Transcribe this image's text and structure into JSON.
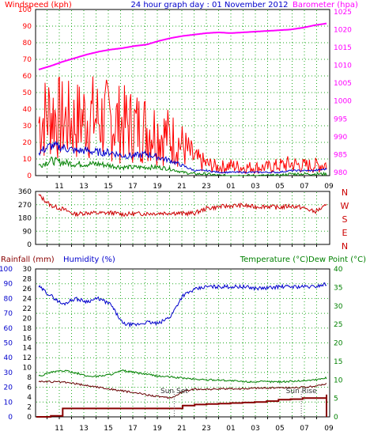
{
  "header": {
    "title": "24 hour graph day : 01 November 2012",
    "left_label": "Windspeed (kph)",
    "right_label": "Barometer (hpa)"
  },
  "hours": [
    "11",
    "13",
    "15",
    "17",
    "19",
    "21",
    "23",
    "01",
    "03",
    "05",
    "07",
    "09"
  ],
  "colors": {
    "wind": "#ff0000",
    "gust": "#ff0000",
    "avg": "#0000cc",
    "low": "#008000",
    "baro": "#ff00ff",
    "dir": "#cc0000",
    "hum": "#0000cc",
    "temp": "#008000",
    "dew": "#660000",
    "rain": "#880000",
    "axis_red": "#ff0000",
    "axis_blue": "#0000cc",
    "axis_green": "#008000",
    "grid": "#22aa22"
  },
  "chart_data": [
    {
      "type": "line",
      "title": "24 hour graph day : 01 November 2012",
      "ylabel": "Windspeed (kph)",
      "ylabel_right": "Barometer (hpa)",
      "ylim": [
        0,
        100
      ],
      "ylim_right": [
        980,
        1025
      ],
      "y_ticks": [
        "0",
        "10",
        "20",
        "30",
        "40",
        "50",
        "60",
        "70",
        "80",
        "90",
        "100"
      ],
      "y_ticks_right": [
        "980",
        "985",
        "990",
        "995",
        "1000",
        "1005",
        "1010",
        "1015",
        "1020",
        "1025"
      ],
      "x": [
        "09",
        "10",
        "11",
        "12",
        "13",
        "14",
        "15",
        "16",
        "17",
        "18",
        "19",
        "20",
        "21",
        "22",
        "23",
        "00",
        "01",
        "02",
        "03",
        "04",
        "05",
        "06",
        "07",
        "08",
        "09"
      ],
      "series": [
        {
          "name": "Gust",
          "values": [
            32,
            38,
            33,
            32,
            36,
            34,
            33,
            31,
            30,
            29,
            26,
            23,
            18,
            10,
            7,
            5,
            6,
            5,
            5,
            5,
            6,
            7,
            6,
            6,
            7
          ]
        },
        {
          "name": "Average",
          "values": [
            14,
            18,
            17,
            15,
            15,
            14,
            14,
            12,
            12,
            13,
            11,
            9,
            6,
            3,
            3,
            2,
            2,
            2,
            2,
            2,
            2,
            3,
            3,
            3,
            4
          ]
        },
        {
          "name": "Low",
          "values": [
            6,
            9,
            8,
            7,
            7,
            7,
            6,
            5,
            5,
            5,
            5,
            4,
            2,
            1,
            1,
            0,
            0,
            0,
            0,
            0,
            0,
            1,
            1,
            1,
            1
          ]
        },
        {
          "name": "Barometer",
          "values": [
            1008.8,
            1009.8,
            1011.0,
            1012.0,
            1013.0,
            1013.8,
            1014.4,
            1014.8,
            1015.4,
            1015.8,
            1016.8,
            1017.6,
            1018.2,
            1018.6,
            1019.0,
            1019.2,
            1019.0,
            1019.2,
            1019.4,
            1019.6,
            1019.8,
            1020.0,
            1020.5,
            1021.2,
            1021.7
          ]
        }
      ]
    },
    {
      "type": "line",
      "ylim": [
        0,
        360
      ],
      "y_ticks": [
        "0",
        "90",
        "180",
        "270",
        "360"
      ],
      "compass": [
        "N",
        "W",
        "S",
        "E",
        "N"
      ],
      "x": [
        "09",
        "10",
        "11",
        "12",
        "13",
        "14",
        "15",
        "16",
        "17",
        "18",
        "19",
        "20",
        "21",
        "22",
        "23",
        "00",
        "01",
        "02",
        "03",
        "04",
        "05",
        "06",
        "07",
        "08",
        "09"
      ],
      "series": [
        {
          "name": "Wind direction",
          "values": [
            335,
            265,
            240,
            205,
            215,
            212,
            215,
            205,
            208,
            210,
            212,
            215,
            210,
            212,
            245,
            255,
            262,
            265,
            255,
            260,
            250,
            262,
            250,
            222,
            262
          ]
        }
      ]
    },
    {
      "type": "line",
      "left_label": "Rainfall (mm)",
      "left_label2": "Humidity (%)",
      "right_label": "Temperature (°C)Dew Point (°C)",
      "rain_ylim": [
        0,
        30
      ],
      "hum_ylim": [
        0,
        100
      ],
      "temp_ylim": [
        0,
        40
      ],
      "rain_ticks": [
        "0",
        "2",
        "4",
        "6",
        "8",
        "10",
        "12",
        "14",
        "16",
        "18",
        "20",
        "22",
        "24",
        "26",
        "28",
        "30"
      ],
      "hum_ticks": [
        "0",
        "10",
        "20",
        "30",
        "40",
        "50",
        "60",
        "70",
        "80",
        "90",
        "100"
      ],
      "temp_ticks": [
        "0",
        "5",
        "10",
        "15",
        "20",
        "25",
        "30",
        "35",
        "40"
      ],
      "annotations": [
        "Sun Set",
        "Sun Rise"
      ],
      "x": [
        "09",
        "10",
        "11",
        "12",
        "13",
        "14",
        "15",
        "16",
        "17",
        "18",
        "19",
        "20",
        "21",
        "22",
        "23",
        "00",
        "01",
        "02",
        "03",
        "04",
        "05",
        "06",
        "07",
        "08",
        "09"
      ],
      "series": [
        {
          "name": "Humidity",
          "values": [
            88,
            82,
            76,
            80,
            78,
            80,
            76,
            63,
            62,
            64,
            63,
            68,
            82,
            86,
            88,
            88,
            88,
            88,
            87,
            87,
            88,
            88,
            88,
            88,
            90
          ]
        },
        {
          "name": "Temperature",
          "values": [
            11,
            12,
            12.5,
            12,
            11,
            11,
            11.5,
            12.5,
            12,
            11.5,
            11,
            10.8,
            10.5,
            10.2,
            10,
            10,
            9.8,
            9.5,
            9.5,
            9.5,
            9.5,
            9.6,
            9.8,
            10,
            10.5
          ]
        },
        {
          "name": "Dew Point",
          "values": [
            9.6,
            9.5,
            9.4,
            9,
            8.5,
            8,
            7.5,
            7,
            6.5,
            6,
            5.5,
            5,
            6.8,
            7.5,
            7.5,
            7.5,
            7.6,
            7.6,
            7.8,
            7.8,
            7.9,
            7.9,
            8,
            8.2,
            9
          ]
        },
        {
          "name": "Rainfall",
          "values": [
            0,
            0.2,
            1.7,
            1.7,
            1.7,
            1.7,
            1.7,
            1.7,
            1.7,
            1.7,
            1.7,
            1.7,
            2.3,
            2.5,
            2.6,
            2.7,
            2.8,
            2.9,
            3.0,
            3.2,
            3.5,
            3.6,
            3.8,
            3.8,
            4.5
          ]
        }
      ]
    }
  ],
  "bottom": {
    "left_label": "Rainfall (mm)",
    "left_label2": "Humidity (%)",
    "right_label": "Temperature (°C)Dew Point (°C)",
    "sunset": "Sun Set",
    "sunrise": "Sun Rise"
  },
  "dir_right_labels": [
    "N",
    "W",
    "S",
    "E",
    "N"
  ]
}
